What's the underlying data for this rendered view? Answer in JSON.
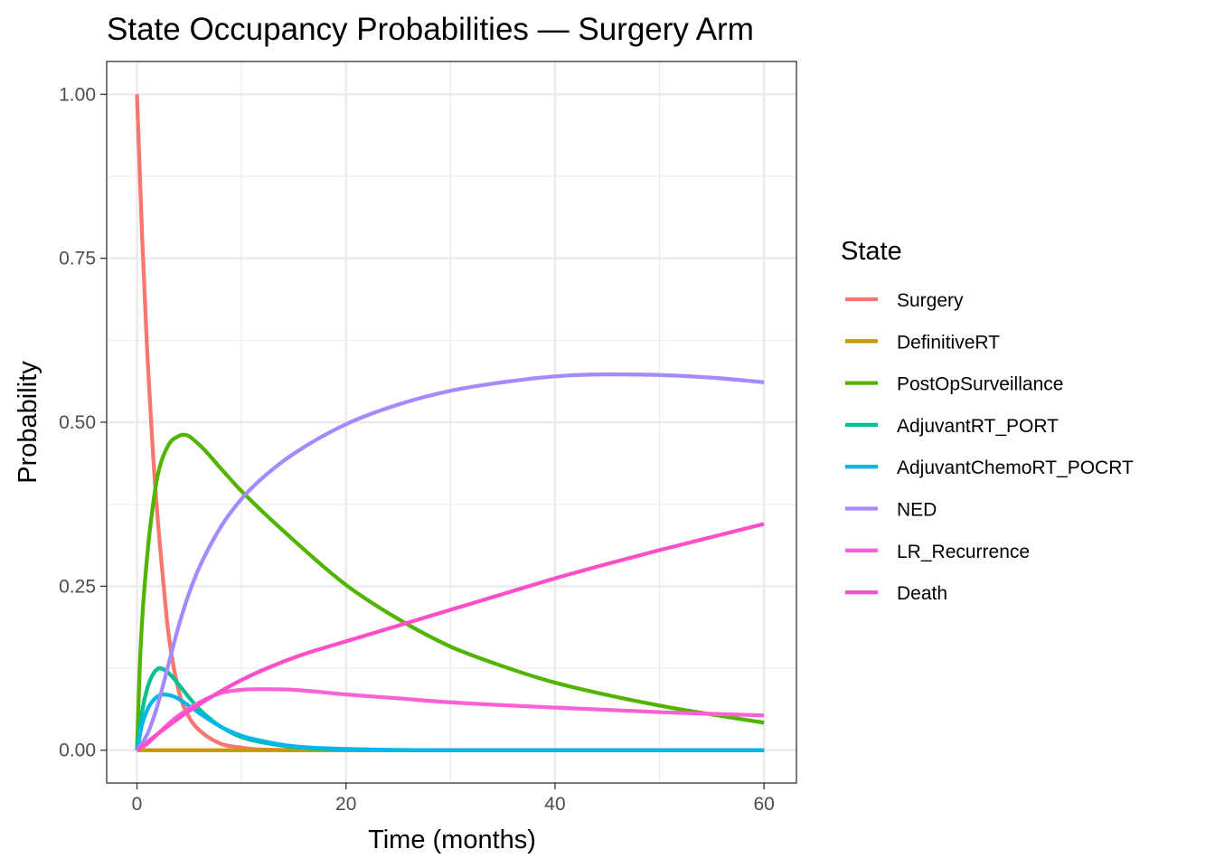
{
  "chart_data": {
    "type": "line",
    "title": "State Occupancy Probabilities — Surgery Arm",
    "xlabel": "Time (months)",
    "ylabel": "Probability",
    "xlim": [
      -2.9,
      63.1
    ],
    "ylim": [
      -0.05,
      1.05
    ],
    "x_ticks": [
      0,
      20,
      40,
      60
    ],
    "x_tick_labels": [
      "0",
      "20",
      "40",
      "60"
    ],
    "y_ticks": [
      0,
      0.25,
      0.5,
      0.75,
      1.0
    ],
    "y_tick_labels": [
      "0.00",
      "0.25",
      "0.50",
      "0.75",
      "1.00"
    ],
    "grid": true,
    "legend": {
      "title": "State",
      "position": "right"
    },
    "series": [
      {
        "name": "Surgery",
        "color": "#F8766D",
        "x": [
          0,
          0.5,
          1,
          1.5,
          2,
          2.5,
          3,
          4,
          5,
          6,
          8,
          10,
          12,
          20,
          30,
          40,
          50,
          60
        ],
        "y": [
          1.0,
          0.78,
          0.6,
          0.46,
          0.35,
          0.26,
          0.18,
          0.09,
          0.05,
          0.03,
          0.01,
          0.004,
          0.001,
          0,
          0,
          0,
          0,
          0
        ]
      },
      {
        "name": "DefinitiveRT",
        "color": "#C49A00",
        "x": [
          0,
          10,
          20,
          30,
          40,
          50,
          60
        ],
        "y": [
          0,
          0,
          0,
          0,
          0,
          0,
          0
        ]
      },
      {
        "name": "PostOpSurveillance",
        "color": "#53B400",
        "x": [
          0,
          0.25,
          0.5,
          1,
          1.5,
          2,
          3,
          4,
          4.5,
          6,
          8,
          10,
          15,
          20,
          25,
          30,
          35,
          40,
          50,
          60
        ],
        "y": [
          0,
          0.12,
          0.2,
          0.3,
          0.37,
          0.42,
          0.465,
          0.479,
          0.481,
          0.465,
          0.43,
          0.395,
          0.32,
          0.252,
          0.2,
          0.158,
          0.128,
          0.103,
          0.068,
          0.042
        ]
      },
      {
        "name": "AdjuvantRT_PORT",
        "color": "#00C094",
        "x": [
          0,
          0.5,
          1,
          1.5,
          2.2,
          3,
          4,
          5,
          6,
          8,
          10,
          12,
          15,
          20,
          30,
          60
        ],
        "y": [
          0,
          0.06,
          0.095,
          0.115,
          0.125,
          0.118,
          0.1,
          0.08,
          0.062,
          0.036,
          0.02,
          0.012,
          0.005,
          0.001,
          0,
          0
        ]
      },
      {
        "name": "AdjuvantChemoRT_POCRT",
        "color": "#00B6EB",
        "x": [
          0,
          0.5,
          1,
          1.5,
          2.5,
          3.5,
          4.5,
          6,
          8,
          10,
          12,
          15,
          20,
          30,
          60
        ],
        "y": [
          0,
          0.04,
          0.062,
          0.075,
          0.085,
          0.082,
          0.073,
          0.056,
          0.036,
          0.022,
          0.014,
          0.006,
          0.002,
          0,
          0
        ]
      },
      {
        "name": "NED",
        "color": "#A58AFF",
        "x": [
          0,
          1,
          2,
          3,
          4,
          5,
          6,
          8,
          10,
          12,
          15,
          20,
          25,
          30,
          35,
          40,
          45,
          50,
          55,
          60
        ],
        "y": [
          0,
          0.025,
          0.07,
          0.13,
          0.19,
          0.24,
          0.28,
          0.34,
          0.383,
          0.415,
          0.452,
          0.497,
          0.527,
          0.548,
          0.561,
          0.57,
          0.573,
          0.572,
          0.568,
          0.561
        ]
      },
      {
        "name": "LR_Recurrence",
        "color": "#FB61D7",
        "x": [
          0,
          1,
          2,
          3,
          4,
          6,
          8,
          10,
          12,
          15,
          20,
          25,
          30,
          40,
          50,
          60
        ],
        "y": [
          0,
          0.01,
          0.025,
          0.04,
          0.053,
          0.073,
          0.087,
          0.092,
          0.093,
          0.092,
          0.085,
          0.079,
          0.073,
          0.065,
          0.058,
          0.053
        ]
      },
      {
        "name": "Death",
        "color": "#FF4FC8",
        "x": [
          0,
          2,
          5,
          10,
          15,
          20,
          25,
          30,
          35,
          40,
          45,
          50,
          55,
          60
        ],
        "y": [
          0,
          0.025,
          0.06,
          0.107,
          0.141,
          0.166,
          0.19,
          0.214,
          0.238,
          0.262,
          0.284,
          0.305,
          0.325,
          0.345
        ]
      }
    ]
  }
}
